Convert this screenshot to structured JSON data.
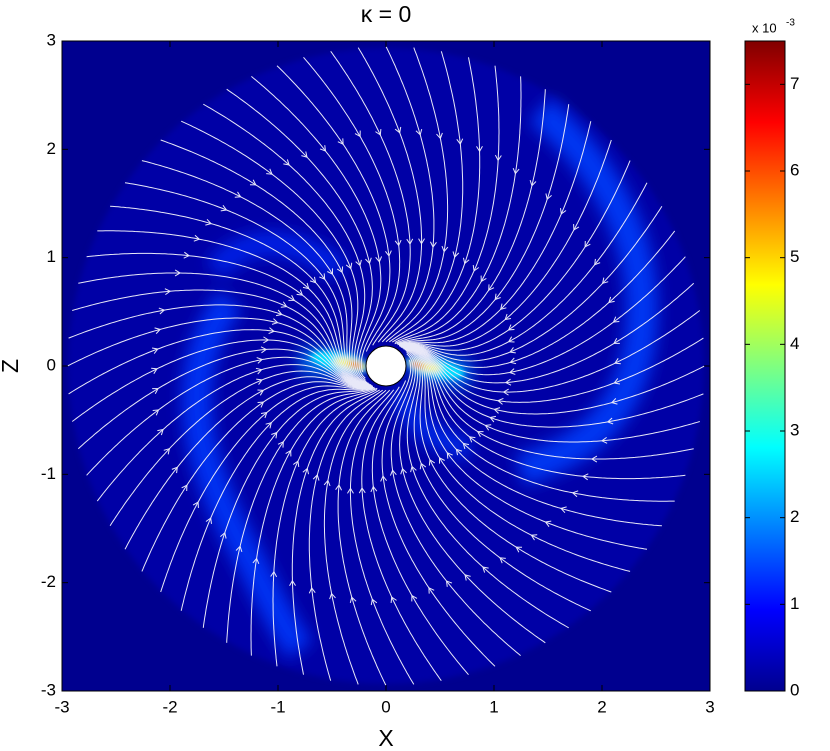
{
  "chart_data": {
    "type": "field",
    "title": "κ = 0",
    "x_label": "X",
    "y_label": "Z",
    "xlim": [
      -3,
      3
    ],
    "ylim": [
      -3,
      3
    ],
    "xticks": [
      -3,
      -2,
      -1,
      0,
      1,
      2,
      3
    ],
    "yticks": [
      -3,
      -2,
      -1,
      0,
      1,
      2,
      3
    ],
    "colormap": "jet",
    "colorbar": {
      "clim": [
        0,
        7.5
      ],
      "ticks": [
        0,
        1,
        2,
        3,
        4,
        5,
        6,
        7
      ],
      "multiplier": "x 10",
      "exponent": "-3"
    }
  }
}
